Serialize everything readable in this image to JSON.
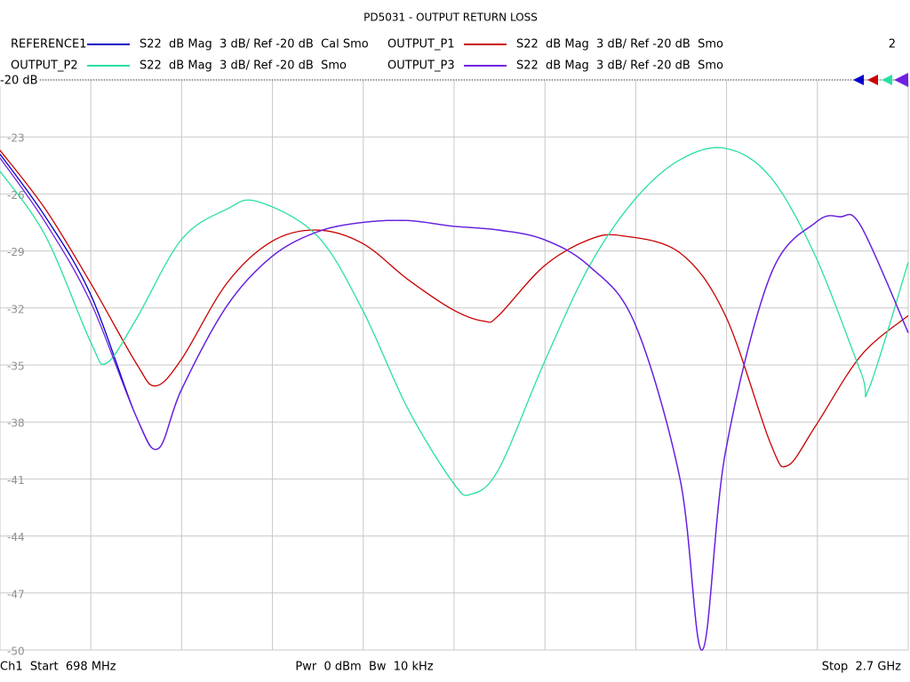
{
  "chart_data": {
    "type": "line",
    "title": "PD5031 - OUTPUT RETURN LOSS",
    "channel": "2",
    "ref_label": "-20 dB",
    "footer_left": "Ch1  Start  698 MHz",
    "footer_center": "Pwr  0 dBm  Bw  10 kHz",
    "footer_right": "Stop  2.7 GHz",
    "xlim": [
      698,
      2700
    ],
    "ylim": [
      -50,
      -20
    ],
    "yticks": [
      -20,
      -23,
      -26,
      -29,
      -32,
      -35,
      -38,
      -41,
      -44,
      -47,
      -50
    ],
    "grid": true,
    "series": [
      {
        "name": "REFERENCE1",
        "label": "S22  dB Mag  3 dB/ Ref -20 dB  Cal Smo",
        "color": "#0000c8",
        "x": [
          698,
          798,
          898,
          998,
          1047,
          1098,
          1198,
          1297,
          1397,
          1497,
          1597,
          1697,
          1797,
          1897,
          1997,
          2097,
          2197,
          2246,
          2297,
          2396,
          2496,
          2549,
          2596,
          2700
        ],
        "values": [
          -23.9,
          -27.2,
          -31.3,
          -37.7,
          -39.4,
          -36.3,
          -31.9,
          -29.3,
          -28.0,
          -27.5,
          -27.4,
          -27.7,
          -27.9,
          -28.4,
          -29.8,
          -32.8,
          -41.0,
          -50,
          -39.6,
          -30.3,
          -27.5,
          -27.2,
          -27.7,
          -33.3
        ]
      },
      {
        "name": "OUTPUT_P1",
        "label": "S22  dB Mag  3 dB/ Ref -20 dB  Smo",
        "color": "#c80000",
        "x": [
          698,
          798,
          898,
          998,
          1041,
          1098,
          1198,
          1297,
          1397,
          1497,
          1597,
          1697,
          1766,
          1797,
          1897,
          1997,
          2069,
          2197,
          2297,
          2396,
          2434,
          2496,
          2596,
          2700
        ],
        "values": [
          -23.7,
          -26.8,
          -30.7,
          -34.9,
          -36.1,
          -34.7,
          -30.7,
          -28.5,
          -27.9,
          -28.6,
          -30.5,
          -32.1,
          -32.7,
          -32.4,
          -29.8,
          -28.4,
          -28.2,
          -29.1,
          -32.4,
          -39.1,
          -40.3,
          -38.2,
          -34.5,
          -32.4
        ]
      },
      {
        "name": "OUTPUT_P2",
        "label": "S22  dB Mag  3 dB/ Ref -20 dB  Smo",
        "color": "#28e0a0",
        "x": [
          698,
          798,
          898,
          933,
          998,
          1098,
          1198,
          1266,
          1397,
          1497,
          1597,
          1697,
          1736,
          1797,
          1897,
          1997,
          2097,
          2197,
          2297,
          2396,
          2496,
          2596,
          2614,
          2700
        ],
        "values": [
          -24.8,
          -28.2,
          -33.8,
          -34.9,
          -32.6,
          -28.4,
          -26.8,
          -26.4,
          -28.2,
          -32.1,
          -37.3,
          -41.2,
          -41.8,
          -40.5,
          -34.9,
          -29.8,
          -26.3,
          -24.2,
          -23.6,
          -25.1,
          -29.3,
          -35.4,
          -36.2,
          -29.6
        ]
      },
      {
        "name": "OUTPUT_P3",
        "label": "S22  dB Mag  3 dB/ Ref -20 dB  Smo",
        "color": "#7020e0",
        "x": [
          698,
          798,
          898,
          998,
          1047,
          1098,
          1198,
          1297,
          1397,
          1497,
          1597,
          1697,
          1797,
          1897,
          1997,
          2097,
          2197,
          2246,
          2297,
          2396,
          2496,
          2549,
          2596,
          2700
        ],
        "values": [
          -24.1,
          -27.5,
          -31.7,
          -37.7,
          -39.4,
          -36.3,
          -31.9,
          -29.3,
          -28.0,
          -27.5,
          -27.4,
          -27.7,
          -27.9,
          -28.4,
          -29.8,
          -32.8,
          -41.0,
          -50,
          -39.6,
          -30.3,
          -27.5,
          -27.2,
          -27.7,
          -33.3
        ]
      }
    ]
  }
}
